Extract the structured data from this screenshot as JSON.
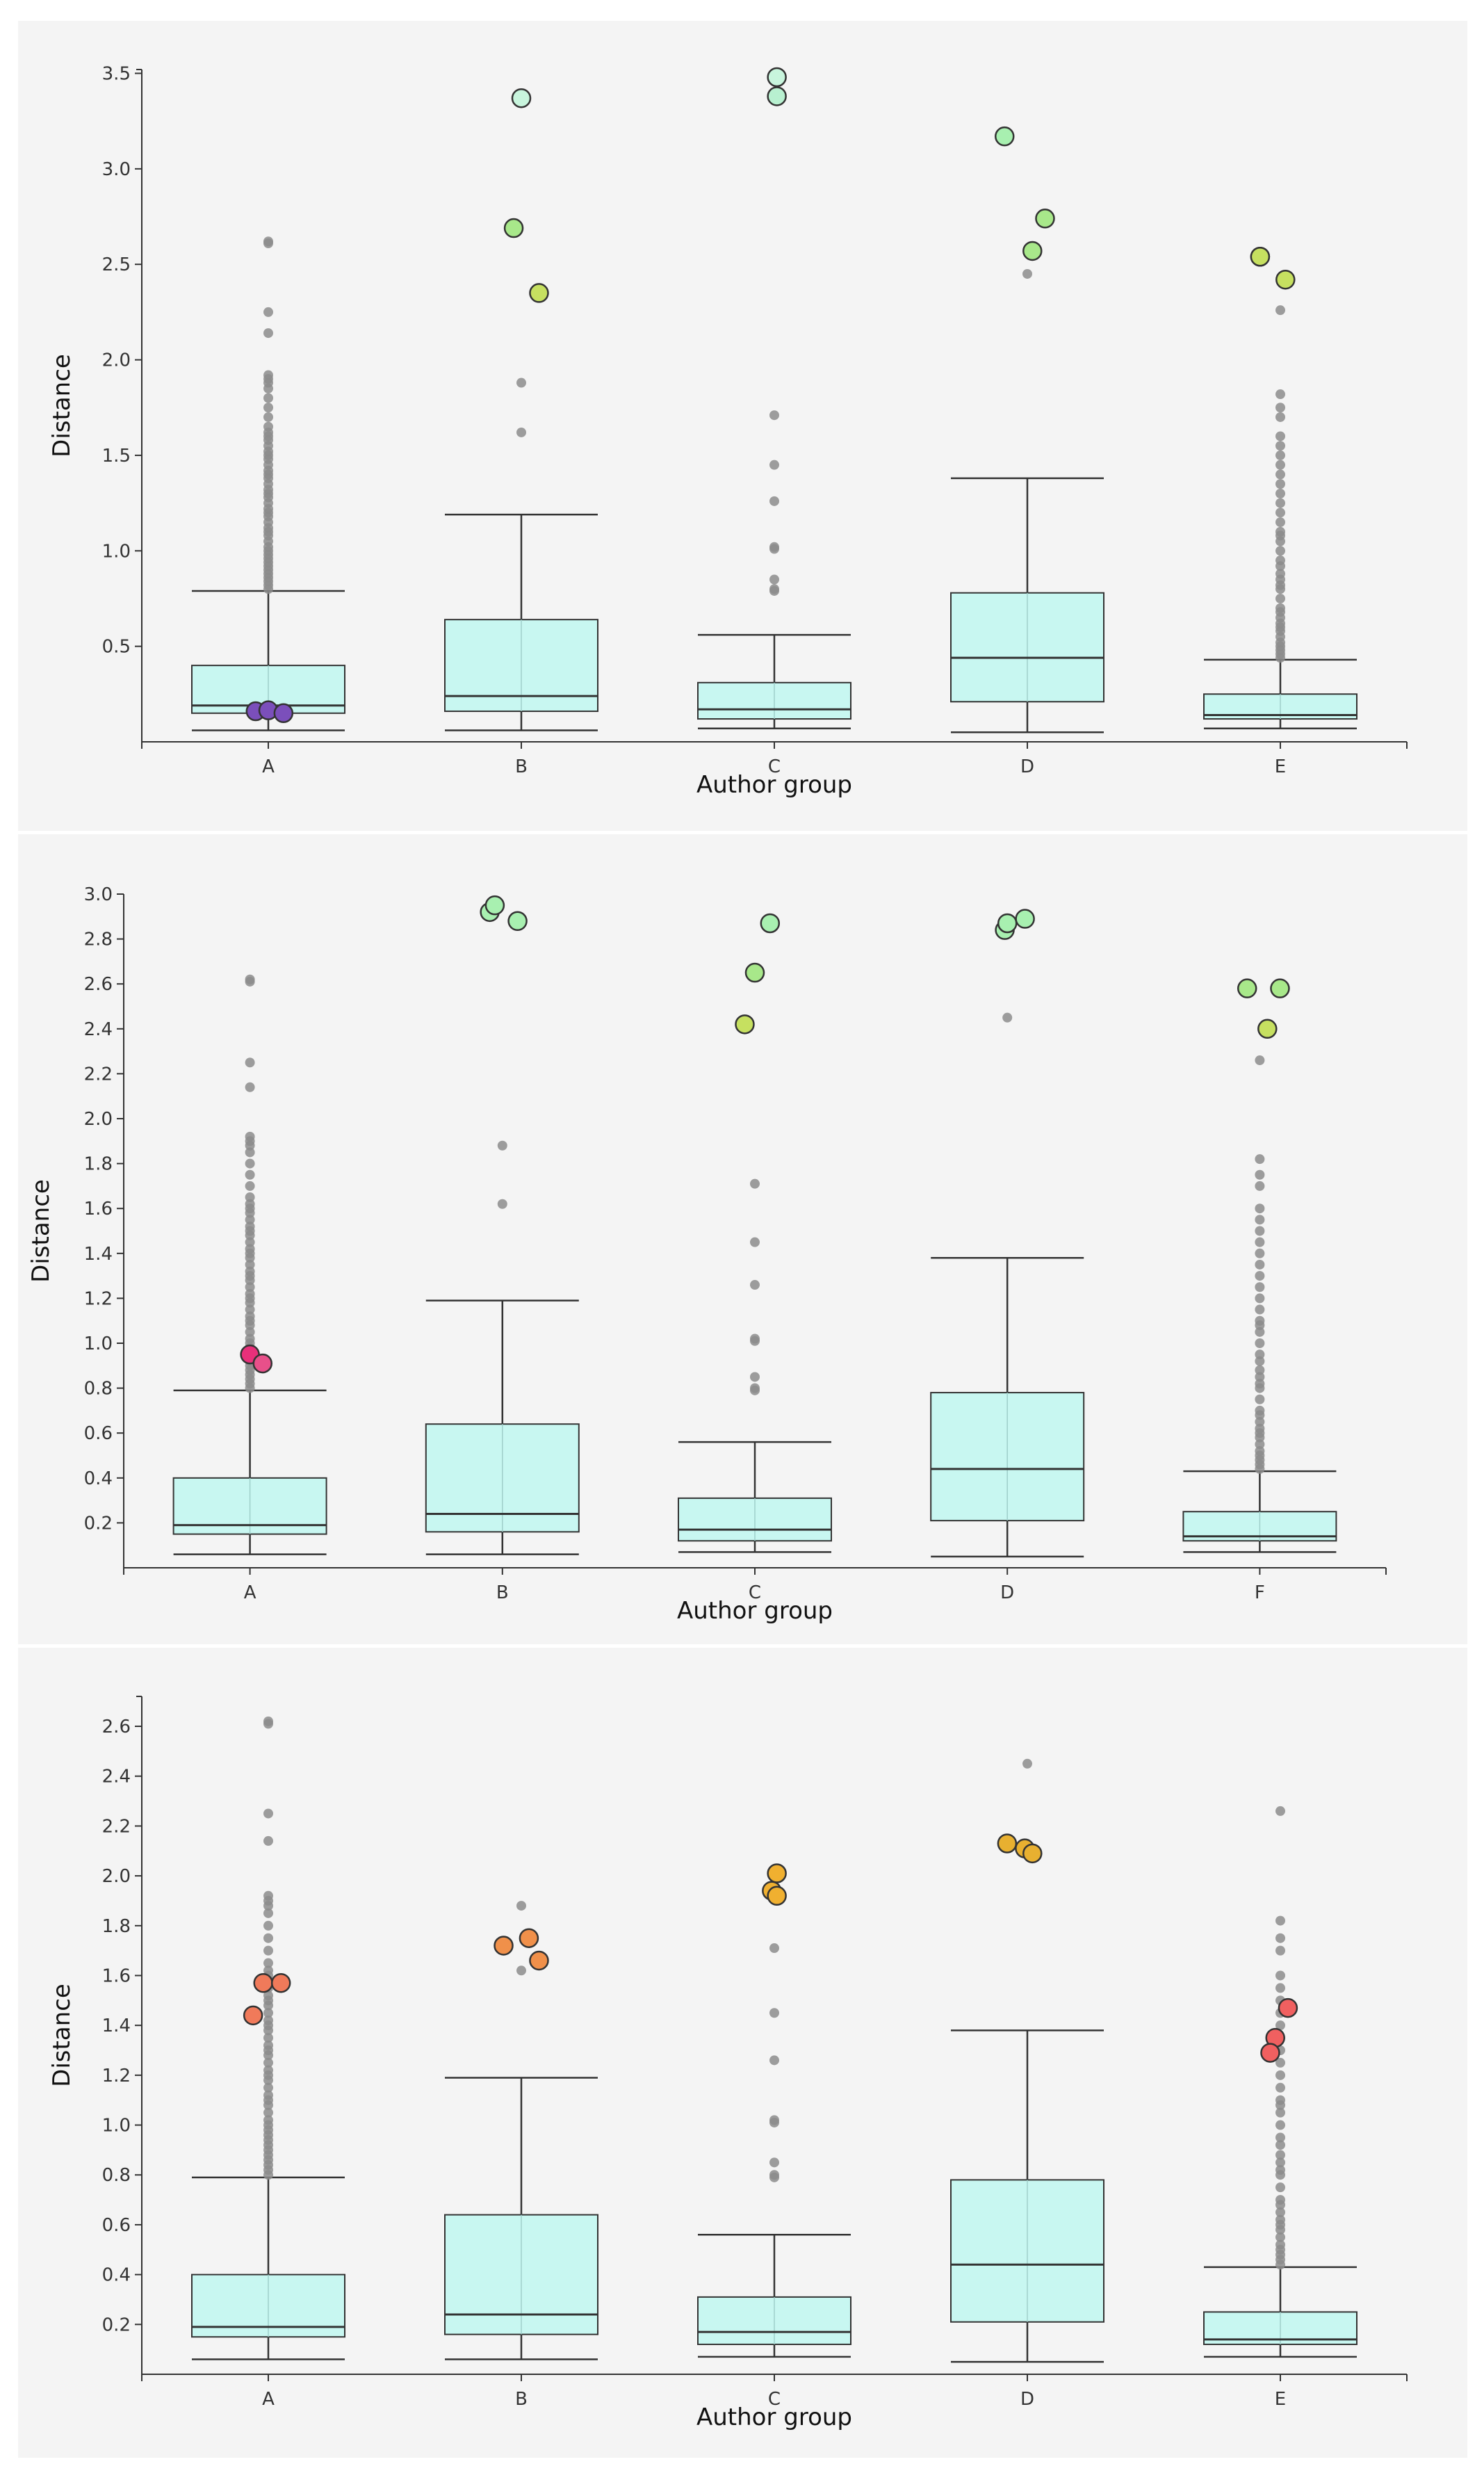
{
  "colors": {
    "panel_bg": "#f4f4f4",
    "box_fill": "#c8f7f1",
    "box_stroke": "#333333",
    "whisker": "#333333",
    "minor_outlier": "#8c8c8c",
    "axis": "#333333"
  },
  "chart_data": [
    {
      "type": "box",
      "xlabel": "Author group",
      "ylabel": "Distance",
      "ylim": [
        0,
        3.52
      ],
      "yticks": [
        0.5,
        1.0,
        1.5,
        2.0,
        2.5,
        3.0,
        3.5
      ],
      "ytick_labels": [
        "0.5",
        "1.0",
        "1.5",
        "2.0",
        "2.5",
        "3.0",
        "3.5"
      ],
      "categories": [
        "A",
        "B",
        "C",
        "D",
        "E"
      ],
      "boxes": [
        {
          "min": 0.06,
          "q1": 0.15,
          "median": 0.19,
          "q3": 0.4,
          "max": 0.79
        },
        {
          "min": 0.06,
          "q1": 0.16,
          "median": 0.24,
          "q3": 0.64,
          "max": 1.19
        },
        {
          "min": 0.07,
          "q1": 0.12,
          "median": 0.17,
          "q3": 0.31,
          "max": 0.56
        },
        {
          "min": 0.05,
          "q1": 0.21,
          "median": 0.44,
          "q3": 0.78,
          "max": 1.38
        },
        {
          "min": 0.07,
          "q1": 0.12,
          "median": 0.14,
          "q3": 0.25,
          "max": 0.43
        }
      ],
      "outliers": [
        [
          0.8,
          0.82,
          0.84,
          0.86,
          0.88,
          0.9,
          0.92,
          0.94,
          0.96,
          0.98,
          1.0,
          1.02,
          1.05,
          1.08,
          1.1,
          1.12,
          1.15,
          1.18,
          1.2,
          1.22,
          1.25,
          1.28,
          1.3,
          1.32,
          1.35,
          1.38,
          1.4,
          1.42,
          1.45,
          1.48,
          1.5,
          1.52,
          1.55,
          1.58,
          1.6,
          1.62,
          1.65,
          1.7,
          1.75,
          1.8,
          1.85,
          1.88,
          1.9,
          1.92,
          2.14,
          2.25,
          2.61,
          2.62
        ],
        [
          1.62,
          1.88
        ],
        [
          0.79,
          0.8,
          0.85,
          1.01,
          1.02,
          1.26,
          1.45,
          1.71
        ],
        [
          2.45
        ],
        [
          0.44,
          0.46,
          0.48,
          0.5,
          0.52,
          0.55,
          0.58,
          0.6,
          0.62,
          0.65,
          0.68,
          0.7,
          0.75,
          0.8,
          0.82,
          0.85,
          0.88,
          0.92,
          0.95,
          1.0,
          1.05,
          1.08,
          1.1,
          1.15,
          1.2,
          1.25,
          1.3,
          1.35,
          1.4,
          1.45,
          1.5,
          1.55,
          1.6,
          1.7,
          1.75,
          1.82,
          2.26
        ]
      ],
      "highlights": [
        {
          "category": "A",
          "points": [
            {
              "offset": -0.05,
              "y": 0.16,
              "color": "#7b4fbb"
            },
            {
              "offset": 0.0,
              "y": 0.165,
              "color": "#7b4fbb"
            },
            {
              "offset": 0.06,
              "y": 0.15,
              "color": "#7b4fbb"
            }
          ]
        },
        {
          "category": "B",
          "points": [
            {
              "offset": 0.0,
              "y": 3.37,
              "color": "#c8f5dd"
            },
            {
              "offset": -0.03,
              "y": 2.69,
              "color": "#a8e88a"
            },
            {
              "offset": 0.07,
              "y": 2.35,
              "color": "#c6e060"
            }
          ]
        },
        {
          "category": "C",
          "points": [
            {
              "offset": 0.01,
              "y": 3.48,
              "color": "#c8f5dd"
            },
            {
              "offset": 0.01,
              "y": 3.38,
              "color": "#b8f0d0"
            }
          ]
        },
        {
          "category": "D",
          "points": [
            {
              "offset": -0.09,
              "y": 3.17,
              "color": "#a8f0b0"
            },
            {
              "offset": 0.07,
              "y": 2.74,
              "color": "#a8e88a"
            },
            {
              "offset": 0.02,
              "y": 2.57,
              "color": "#a8e88a"
            }
          ]
        },
        {
          "category": "E",
          "points": [
            {
              "offset": -0.08,
              "y": 2.54,
              "color": "#c6e060"
            },
            {
              "offset": -0.08,
              "y": 2.54,
              "color": "#c6e060"
            },
            {
              "offset": 0.02,
              "y": 2.42,
              "color": "#c6e060"
            }
          ]
        }
      ]
    },
    {
      "type": "box",
      "xlabel": "Author group",
      "ylabel": "Distance",
      "ylim": [
        0,
        3.0
      ],
      "yticks": [
        0.2,
        0.4,
        0.6,
        0.8,
        1.0,
        1.2,
        1.4,
        1.6,
        1.8,
        2.0,
        2.2,
        2.4,
        2.6,
        2.8,
        3.0
      ],
      "ytick_labels": [
        "0.2",
        "0.4",
        "0.6",
        "0.8",
        "1.0",
        "1.2",
        "1.4",
        "1.6",
        "1.8",
        "2.0",
        "2.2",
        "2.4",
        "2.6",
        "2.8",
        "3.0"
      ],
      "categories": [
        "A",
        "B",
        "C",
        "D",
        "F"
      ],
      "boxes": [
        {
          "min": 0.06,
          "q1": 0.15,
          "median": 0.19,
          "q3": 0.4,
          "max": 0.79
        },
        {
          "min": 0.06,
          "q1": 0.16,
          "median": 0.24,
          "q3": 0.64,
          "max": 1.19
        },
        {
          "min": 0.07,
          "q1": 0.12,
          "median": 0.17,
          "q3": 0.31,
          "max": 0.56
        },
        {
          "min": 0.05,
          "q1": 0.21,
          "median": 0.44,
          "q3": 0.78,
          "max": 1.38
        },
        {
          "min": 0.07,
          "q1": 0.12,
          "median": 0.14,
          "q3": 0.25,
          "max": 0.43
        }
      ],
      "outliers": [
        [
          0.8,
          0.82,
          0.84,
          0.86,
          0.88,
          0.9,
          0.92,
          0.94,
          0.96,
          0.98,
          1.0,
          1.02,
          1.05,
          1.08,
          1.1,
          1.12,
          1.15,
          1.18,
          1.2,
          1.22,
          1.25,
          1.28,
          1.3,
          1.32,
          1.35,
          1.38,
          1.4,
          1.42,
          1.45,
          1.48,
          1.5,
          1.52,
          1.55,
          1.58,
          1.6,
          1.62,
          1.65,
          1.7,
          1.75,
          1.8,
          1.85,
          1.88,
          1.9,
          1.92,
          2.14,
          2.25,
          2.61,
          2.62
        ],
        [
          1.62,
          1.88
        ],
        [
          0.79,
          0.8,
          0.85,
          1.01,
          1.02,
          1.26,
          1.45,
          1.71
        ],
        [
          2.45
        ],
        [
          0.44,
          0.46,
          0.48,
          0.5,
          0.52,
          0.55,
          0.58,
          0.6,
          0.62,
          0.65,
          0.68,
          0.7,
          0.75,
          0.8,
          0.82,
          0.85,
          0.88,
          0.92,
          0.95,
          1.0,
          1.05,
          1.08,
          1.1,
          1.15,
          1.2,
          1.25,
          1.3,
          1.35,
          1.4,
          1.45,
          1.5,
          1.55,
          1.6,
          1.7,
          1.75,
          1.82,
          2.26
        ]
      ],
      "highlights": [
        {
          "category": "A",
          "points": [
            {
              "offset": 0.0,
              "y": 0.95,
              "color": "#e8307a"
            },
            {
              "offset": 0.05,
              "y": 0.91,
              "color": "#e8508a"
            }
          ]
        },
        {
          "category": "B",
          "points": [
            {
              "offset": -0.05,
              "y": 2.92,
              "color": "#a8f0b0"
            },
            {
              "offset": -0.03,
              "y": 2.95,
              "color": "#a8f0b0"
            },
            {
              "offset": 0.06,
              "y": 2.88,
              "color": "#a8f0b0"
            }
          ]
        },
        {
          "category": "C",
          "points": [
            {
              "offset": 0.06,
              "y": 2.87,
              "color": "#a8f0b0"
            },
            {
              "offset": 0.0,
              "y": 2.65,
              "color": "#a8e88a"
            },
            {
              "offset": -0.04,
              "y": 2.42,
              "color": "#c6e060"
            }
          ]
        },
        {
          "category": "D",
          "points": [
            {
              "offset": -0.01,
              "y": 2.84,
              "color": "#a8f0b0"
            },
            {
              "offset": 0.0,
              "y": 2.87,
              "color": "#a8f0b0"
            },
            {
              "offset": 0.07,
              "y": 2.89,
              "color": "#a8f0b0"
            }
          ]
        },
        {
          "category": "F",
          "points": [
            {
              "offset": -0.05,
              "y": 2.58,
              "color": "#a8e88a"
            },
            {
              "offset": 0.08,
              "y": 2.58,
              "color": "#a8e88a"
            },
            {
              "offset": 0.03,
              "y": 2.4,
              "color": "#c6e060"
            }
          ]
        }
      ]
    },
    {
      "type": "box",
      "xlabel": "Author group",
      "ylabel": "Distance",
      "ylim": [
        0,
        2.72
      ],
      "yticks": [
        0.2,
        0.4,
        0.6,
        0.8,
        1.0,
        1.2,
        1.4,
        1.6,
        1.8,
        2.0,
        2.2,
        2.4,
        2.6
      ],
      "ytick_labels": [
        "0.2",
        "0.4",
        "0.6",
        "0.8",
        "1.0",
        "1.2",
        "1.4",
        "1.6",
        "1.8",
        "2.0",
        "2.2",
        "2.4",
        "2.6"
      ],
      "categories": [
        "A",
        "B",
        "C",
        "D",
        "E"
      ],
      "boxes": [
        {
          "min": 0.06,
          "q1": 0.15,
          "median": 0.19,
          "q3": 0.4,
          "max": 0.79
        },
        {
          "min": 0.06,
          "q1": 0.16,
          "median": 0.24,
          "q3": 0.64,
          "max": 1.19
        },
        {
          "min": 0.07,
          "q1": 0.12,
          "median": 0.17,
          "q3": 0.31,
          "max": 0.56
        },
        {
          "min": 0.05,
          "q1": 0.21,
          "median": 0.44,
          "q3": 0.78,
          "max": 1.38
        },
        {
          "min": 0.07,
          "q1": 0.12,
          "median": 0.14,
          "q3": 0.25,
          "max": 0.43
        }
      ],
      "outliers": [
        [
          0.8,
          0.82,
          0.84,
          0.86,
          0.88,
          0.9,
          0.92,
          0.94,
          0.96,
          0.98,
          1.0,
          1.02,
          1.05,
          1.08,
          1.1,
          1.12,
          1.15,
          1.18,
          1.2,
          1.22,
          1.25,
          1.28,
          1.3,
          1.32,
          1.35,
          1.38,
          1.4,
          1.42,
          1.45,
          1.48,
          1.5,
          1.52,
          1.55,
          1.58,
          1.6,
          1.62,
          1.65,
          1.7,
          1.75,
          1.8,
          1.85,
          1.88,
          1.9,
          1.92,
          2.14,
          2.25,
          2.61,
          2.62
        ],
        [
          1.62,
          1.88
        ],
        [
          0.79,
          0.8,
          0.85,
          1.01,
          1.02,
          1.26,
          1.45,
          1.71
        ],
        [
          2.45
        ],
        [
          0.44,
          0.46,
          0.48,
          0.5,
          0.52,
          0.55,
          0.58,
          0.6,
          0.62,
          0.65,
          0.68,
          0.7,
          0.75,
          0.8,
          0.82,
          0.85,
          0.88,
          0.92,
          0.95,
          1.0,
          1.05,
          1.08,
          1.1,
          1.15,
          1.2,
          1.25,
          1.3,
          1.35,
          1.4,
          1.45,
          1.5,
          1.55,
          1.6,
          1.7,
          1.75,
          1.82,
          2.26
        ]
      ],
      "highlights": [
        {
          "category": "A",
          "points": [
            {
              "offset": -0.06,
              "y": 1.44,
              "color": "#f07a5a"
            },
            {
              "offset": -0.02,
              "y": 1.57,
              "color": "#f07a5a"
            },
            {
              "offset": 0.05,
              "y": 1.57,
              "color": "#f07a5a"
            }
          ]
        },
        {
          "category": "B",
          "points": [
            {
              "offset": -0.07,
              "y": 1.72,
              "color": "#f0904a"
            },
            {
              "offset": 0.03,
              "y": 1.75,
              "color": "#f0904a"
            },
            {
              "offset": 0.07,
              "y": 1.66,
              "color": "#f0904a"
            }
          ]
        },
        {
          "category": "C",
          "points": [
            {
              "offset": 0.01,
              "y": 2.01,
              "color": "#f0b030"
            },
            {
              "offset": -0.01,
              "y": 1.94,
              "color": "#f0b030"
            },
            {
              "offset": 0.01,
              "y": 1.92,
              "color": "#f0b030"
            }
          ]
        },
        {
          "category": "D",
          "points": [
            {
              "offset": -0.08,
              "y": 2.13,
              "color": "#e8b030"
            },
            {
              "offset": -0.01,
              "y": 2.11,
              "color": "#e8b030"
            },
            {
              "offset": 0.02,
              "y": 2.09,
              "color": "#e8b030"
            }
          ]
        },
        {
          "category": "E",
          "points": [
            {
              "offset": 0.03,
              "y": 1.47,
              "color": "#f06060"
            },
            {
              "offset": -0.02,
              "y": 1.35,
              "color": "#f06060"
            },
            {
              "offset": -0.04,
              "y": 1.29,
              "color": "#f06060"
            }
          ]
        }
      ]
    }
  ]
}
